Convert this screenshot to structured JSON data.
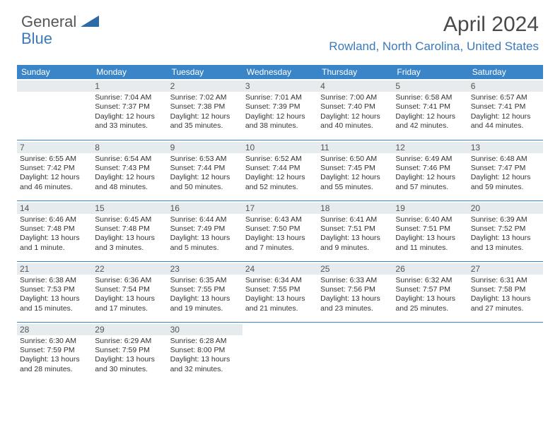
{
  "logo": {
    "general": "General",
    "blue": "Blue"
  },
  "title": "April 2024",
  "location": "Rowland, North Carolina, United States",
  "dayHeaders": [
    "Sunday",
    "Monday",
    "Tuesday",
    "Wednesday",
    "Thursday",
    "Friday",
    "Saturday"
  ],
  "colors": {
    "headerBg": "#3a85c8",
    "accent": "#3a7ab8",
    "daynumBg": "#e6ebee"
  },
  "weeks": [
    [
      {
        "n": "",
        "sr": "",
        "ss": "",
        "dl1": "",
        "dl2": ""
      },
      {
        "n": "1",
        "sr": "Sunrise: 7:04 AM",
        "ss": "Sunset: 7:37 PM",
        "dl1": "Daylight: 12 hours",
        "dl2": "and 33 minutes."
      },
      {
        "n": "2",
        "sr": "Sunrise: 7:02 AM",
        "ss": "Sunset: 7:38 PM",
        "dl1": "Daylight: 12 hours",
        "dl2": "and 35 minutes."
      },
      {
        "n": "3",
        "sr": "Sunrise: 7:01 AM",
        "ss": "Sunset: 7:39 PM",
        "dl1": "Daylight: 12 hours",
        "dl2": "and 38 minutes."
      },
      {
        "n": "4",
        "sr": "Sunrise: 7:00 AM",
        "ss": "Sunset: 7:40 PM",
        "dl1": "Daylight: 12 hours",
        "dl2": "and 40 minutes."
      },
      {
        "n": "5",
        "sr": "Sunrise: 6:58 AM",
        "ss": "Sunset: 7:41 PM",
        "dl1": "Daylight: 12 hours",
        "dl2": "and 42 minutes."
      },
      {
        "n": "6",
        "sr": "Sunrise: 6:57 AM",
        "ss": "Sunset: 7:41 PM",
        "dl1": "Daylight: 12 hours",
        "dl2": "and 44 minutes."
      }
    ],
    [
      {
        "n": "7",
        "sr": "Sunrise: 6:55 AM",
        "ss": "Sunset: 7:42 PM",
        "dl1": "Daylight: 12 hours",
        "dl2": "and 46 minutes."
      },
      {
        "n": "8",
        "sr": "Sunrise: 6:54 AM",
        "ss": "Sunset: 7:43 PM",
        "dl1": "Daylight: 12 hours",
        "dl2": "and 48 minutes."
      },
      {
        "n": "9",
        "sr": "Sunrise: 6:53 AM",
        "ss": "Sunset: 7:44 PM",
        "dl1": "Daylight: 12 hours",
        "dl2": "and 50 minutes."
      },
      {
        "n": "10",
        "sr": "Sunrise: 6:52 AM",
        "ss": "Sunset: 7:44 PM",
        "dl1": "Daylight: 12 hours",
        "dl2": "and 52 minutes."
      },
      {
        "n": "11",
        "sr": "Sunrise: 6:50 AM",
        "ss": "Sunset: 7:45 PM",
        "dl1": "Daylight: 12 hours",
        "dl2": "and 55 minutes."
      },
      {
        "n": "12",
        "sr": "Sunrise: 6:49 AM",
        "ss": "Sunset: 7:46 PM",
        "dl1": "Daylight: 12 hours",
        "dl2": "and 57 minutes."
      },
      {
        "n": "13",
        "sr": "Sunrise: 6:48 AM",
        "ss": "Sunset: 7:47 PM",
        "dl1": "Daylight: 12 hours",
        "dl2": "and 59 minutes."
      }
    ],
    [
      {
        "n": "14",
        "sr": "Sunrise: 6:46 AM",
        "ss": "Sunset: 7:48 PM",
        "dl1": "Daylight: 13 hours",
        "dl2": "and 1 minute."
      },
      {
        "n": "15",
        "sr": "Sunrise: 6:45 AM",
        "ss": "Sunset: 7:48 PM",
        "dl1": "Daylight: 13 hours",
        "dl2": "and 3 minutes."
      },
      {
        "n": "16",
        "sr": "Sunrise: 6:44 AM",
        "ss": "Sunset: 7:49 PM",
        "dl1": "Daylight: 13 hours",
        "dl2": "and 5 minutes."
      },
      {
        "n": "17",
        "sr": "Sunrise: 6:43 AM",
        "ss": "Sunset: 7:50 PM",
        "dl1": "Daylight: 13 hours",
        "dl2": "and 7 minutes."
      },
      {
        "n": "18",
        "sr": "Sunrise: 6:41 AM",
        "ss": "Sunset: 7:51 PM",
        "dl1": "Daylight: 13 hours",
        "dl2": "and 9 minutes."
      },
      {
        "n": "19",
        "sr": "Sunrise: 6:40 AM",
        "ss": "Sunset: 7:51 PM",
        "dl1": "Daylight: 13 hours",
        "dl2": "and 11 minutes."
      },
      {
        "n": "20",
        "sr": "Sunrise: 6:39 AM",
        "ss": "Sunset: 7:52 PM",
        "dl1": "Daylight: 13 hours",
        "dl2": "and 13 minutes."
      }
    ],
    [
      {
        "n": "21",
        "sr": "Sunrise: 6:38 AM",
        "ss": "Sunset: 7:53 PM",
        "dl1": "Daylight: 13 hours",
        "dl2": "and 15 minutes."
      },
      {
        "n": "22",
        "sr": "Sunrise: 6:36 AM",
        "ss": "Sunset: 7:54 PM",
        "dl1": "Daylight: 13 hours",
        "dl2": "and 17 minutes."
      },
      {
        "n": "23",
        "sr": "Sunrise: 6:35 AM",
        "ss": "Sunset: 7:55 PM",
        "dl1": "Daylight: 13 hours",
        "dl2": "and 19 minutes."
      },
      {
        "n": "24",
        "sr": "Sunrise: 6:34 AM",
        "ss": "Sunset: 7:55 PM",
        "dl1": "Daylight: 13 hours",
        "dl2": "and 21 minutes."
      },
      {
        "n": "25",
        "sr": "Sunrise: 6:33 AM",
        "ss": "Sunset: 7:56 PM",
        "dl1": "Daylight: 13 hours",
        "dl2": "and 23 minutes."
      },
      {
        "n": "26",
        "sr": "Sunrise: 6:32 AM",
        "ss": "Sunset: 7:57 PM",
        "dl1": "Daylight: 13 hours",
        "dl2": "and 25 minutes."
      },
      {
        "n": "27",
        "sr": "Sunrise: 6:31 AM",
        "ss": "Sunset: 7:58 PM",
        "dl1": "Daylight: 13 hours",
        "dl2": "and 27 minutes."
      }
    ],
    [
      {
        "n": "28",
        "sr": "Sunrise: 6:30 AM",
        "ss": "Sunset: 7:59 PM",
        "dl1": "Daylight: 13 hours",
        "dl2": "and 28 minutes."
      },
      {
        "n": "29",
        "sr": "Sunrise: 6:29 AM",
        "ss": "Sunset: 7:59 PM",
        "dl1": "Daylight: 13 hours",
        "dl2": "and 30 minutes."
      },
      {
        "n": "30",
        "sr": "Sunrise: 6:28 AM",
        "ss": "Sunset: 8:00 PM",
        "dl1": "Daylight: 13 hours",
        "dl2": "and 32 minutes."
      },
      {
        "n": "",
        "sr": "",
        "ss": "",
        "dl1": "",
        "dl2": ""
      },
      {
        "n": "",
        "sr": "",
        "ss": "",
        "dl1": "",
        "dl2": ""
      },
      {
        "n": "",
        "sr": "",
        "ss": "",
        "dl1": "",
        "dl2": ""
      },
      {
        "n": "",
        "sr": "",
        "ss": "",
        "dl1": "",
        "dl2": ""
      }
    ]
  ]
}
